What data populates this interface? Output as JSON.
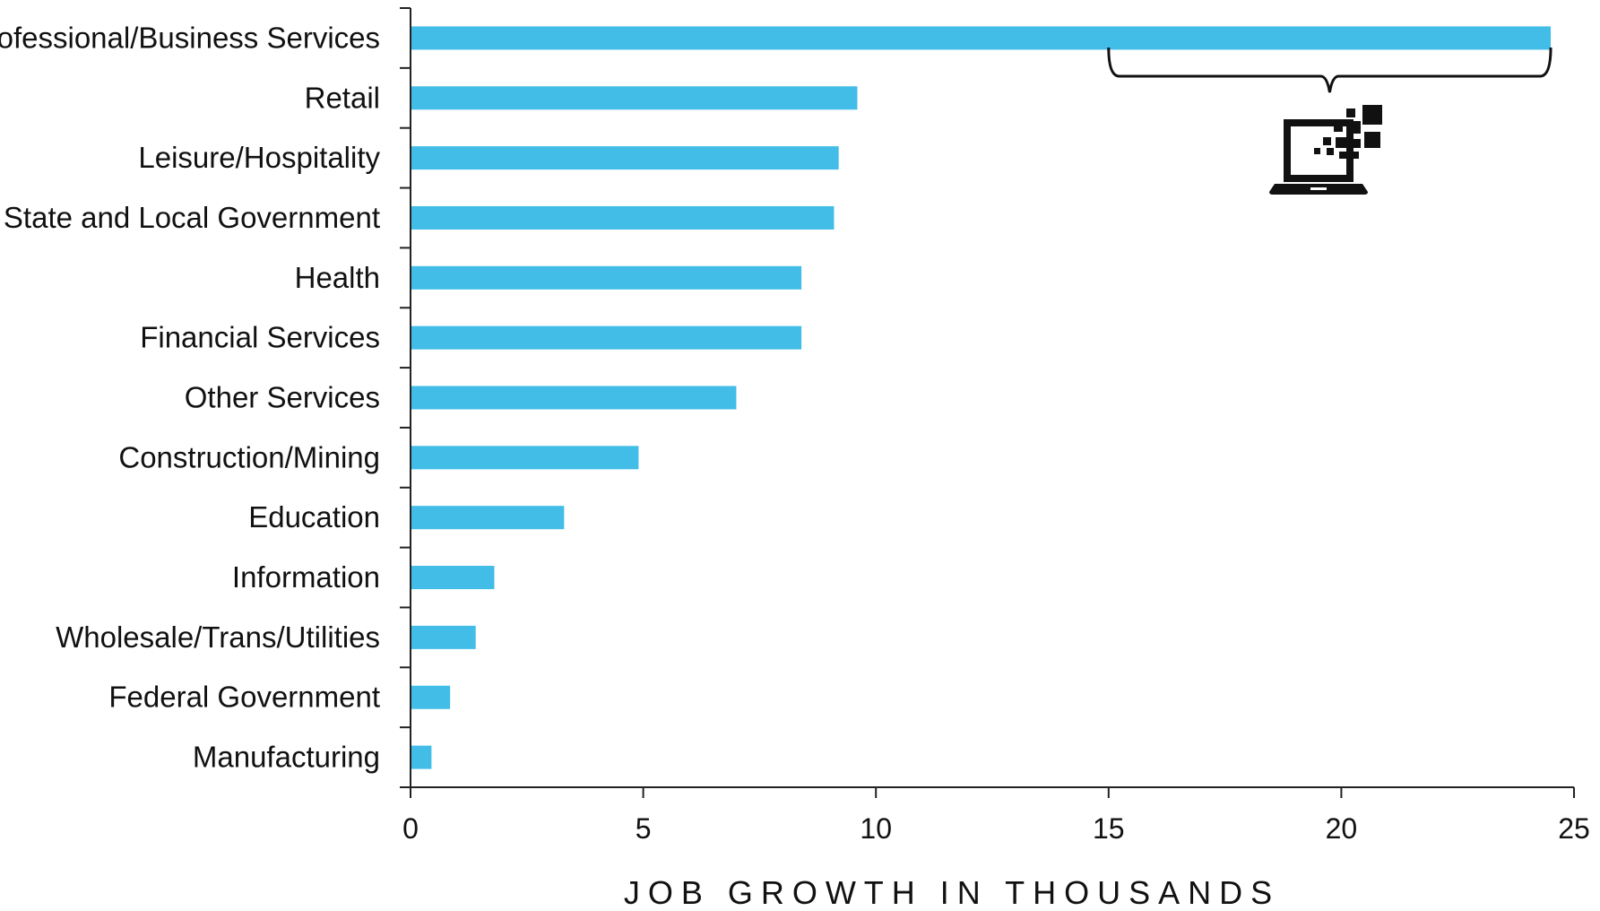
{
  "chart_data": {
    "type": "bar",
    "orientation": "horizontal",
    "categories": [
      "Professional/Business Services",
      "Retail",
      "Leisure/Hospitality",
      "State and Local Government",
      "Health",
      "Financial Services",
      "Other Services",
      "Construction/Mining",
      "Education",
      "Information",
      "Wholesale/Trans/Utilities",
      "Federal Government",
      "Manufacturing"
    ],
    "values": [
      24.5,
      9.6,
      9.2,
      9.1,
      8.4,
      8.4,
      7.0,
      4.9,
      3.3,
      1.8,
      1.4,
      0.85,
      0.45
    ],
    "title": "",
    "xlabel": "JOB GROWTH IN THOUSANDS",
    "ylabel": "",
    "xlim": [
      0,
      25
    ],
    "xticks": [
      0,
      5,
      10,
      15,
      20,
      25
    ],
    "grid": false,
    "legend": "none",
    "bar_color": "#41bde8",
    "annotation": {
      "type": "brace",
      "x_range": [
        15,
        24.5
      ],
      "target_category": "Professional/Business Services",
      "icon": "laptop-digital-icon"
    }
  }
}
